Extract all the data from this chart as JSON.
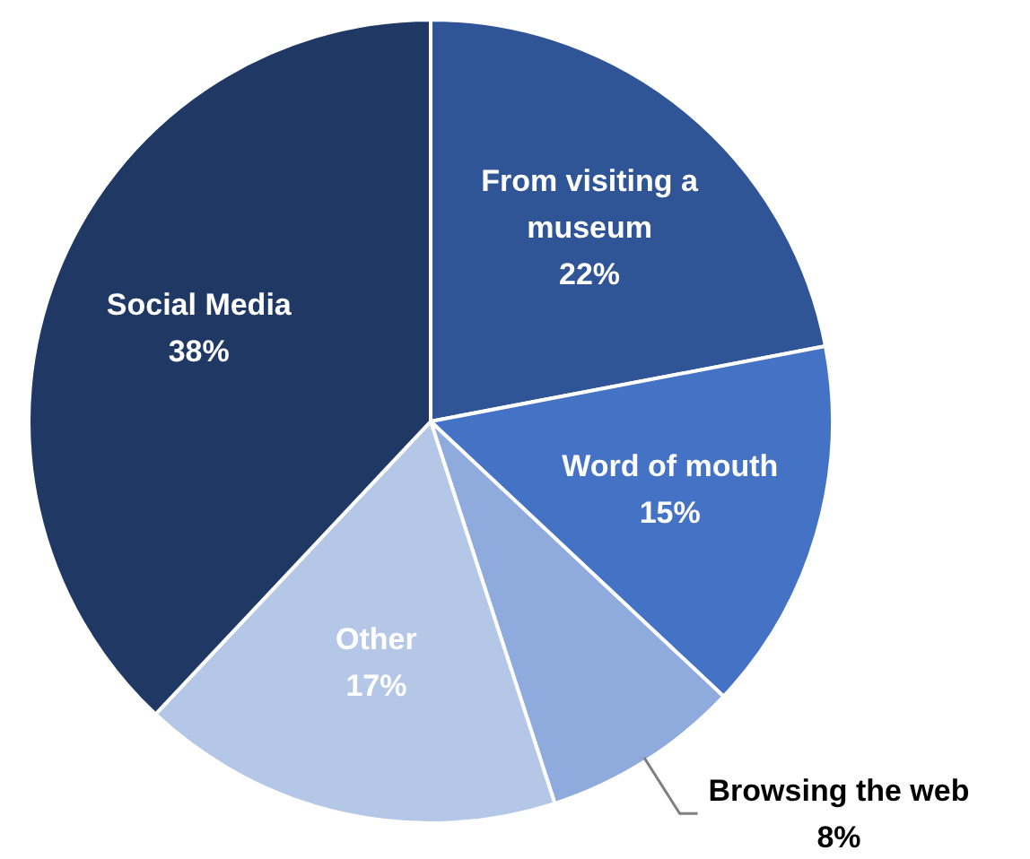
{
  "chart_data": {
    "type": "pie",
    "categories": [
      "From visiting a museum",
      "Word of mouth",
      "Browsing the web",
      "Other",
      "Social Media"
    ],
    "values": [
      22,
      15,
      8,
      17,
      38
    ],
    "colors": [
      "#2f5597",
      "#4472c4",
      "#8faadc",
      "#b4c7e7",
      "#203864"
    ],
    "value_labels": [
      "22%",
      "15%",
      "8%",
      "17%",
      "38%"
    ],
    "legend": false
  }
}
